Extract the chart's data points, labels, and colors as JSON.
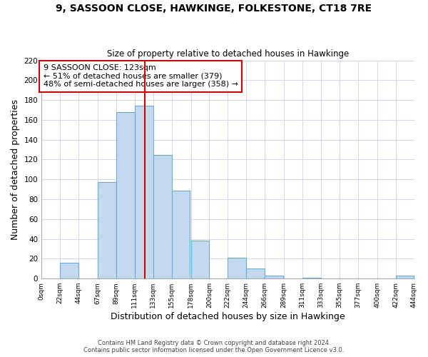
{
  "title": "9, SASSOON CLOSE, HAWKINGE, FOLKESTONE, CT18 7RE",
  "subtitle": "Size of property relative to detached houses in Hawkinge",
  "xlabel": "Distribution of detached houses by size in Hawkinge",
  "ylabel": "Number of detached properties",
  "bin_labels": [
    "0sqm",
    "22sqm",
    "44sqm",
    "67sqm",
    "89sqm",
    "111sqm",
    "133sqm",
    "155sqm",
    "178sqm",
    "200sqm",
    "222sqm",
    "244sqm",
    "266sqm",
    "289sqm",
    "311sqm",
    "333sqm",
    "355sqm",
    "377sqm",
    "400sqm",
    "422sqm",
    "444sqm"
  ],
  "bar_heights": [
    0,
    16,
    0,
    97,
    168,
    174,
    125,
    89,
    38,
    0,
    21,
    10,
    3,
    0,
    1,
    0,
    0,
    0,
    0,
    3
  ],
  "bar_color": "#c5d9ee",
  "bar_edge_color": "#6aaad4",
  "vline_x": 123,
  "vline_color": "#cc0000",
  "ylim": [
    0,
    220
  ],
  "yticks": [
    0,
    20,
    40,
    60,
    80,
    100,
    120,
    140,
    160,
    180,
    200,
    220
  ],
  "annotation_title": "9 SASSOON CLOSE: 123sqm",
  "annotation_line1": "← 51% of detached houses are smaller (379)",
  "annotation_line2": "48% of semi-detached houses are larger (358) →",
  "annotation_box_color": "#ffffff",
  "annotation_box_edge": "#cc0000",
  "footer1": "Contains HM Land Registry data © Crown copyright and database right 2024.",
  "footer2": "Contains public sector information licensed under the Open Government Licence v3.0.",
  "background_color": "#ffffff",
  "grid_color": "#d0d8e8"
}
